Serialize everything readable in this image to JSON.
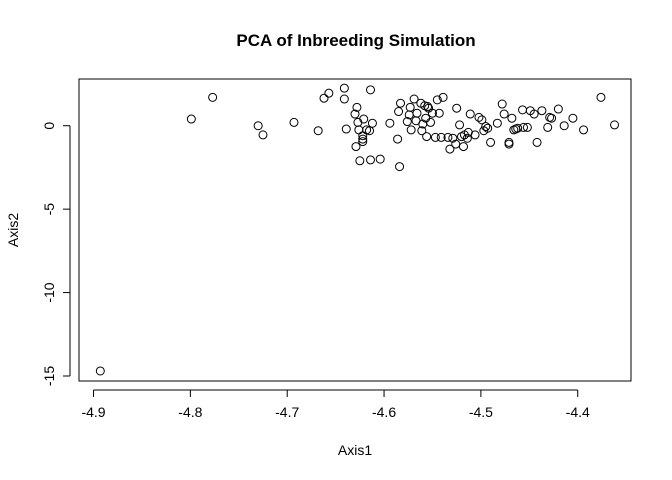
{
  "chart_data": {
    "type": "scatter",
    "title": "PCA of Inbreeding Simulation",
    "xlabel": "Axis1",
    "ylabel": "Axis2",
    "xlim": [
      -4.915,
      -4.345
    ],
    "ylim": [
      -15.3,
      2.8
    ],
    "x_ticks": [
      -4.9,
      -4.8,
      -4.7,
      -4.6,
      -4.5,
      -4.4
    ],
    "x_tick_labels": [
      "-4.9",
      "-4.8",
      "-4.7",
      "-4.6",
      "-4.5",
      "-4.4"
    ],
    "y_ticks": [
      0,
      -5,
      -10,
      -15
    ],
    "y_tick_labels": [
      "0",
      "-5",
      "-10",
      "-15"
    ],
    "grid": false,
    "legend": "none",
    "marker": "open-circle",
    "points": [
      {
        "x": -4.893,
        "y": -14.7
      },
      {
        "x": -4.799,
        "y": 0.4
      },
      {
        "x": -4.777,
        "y": 1.7
      },
      {
        "x": -4.73,
        "y": 0.0
      },
      {
        "x": -4.725,
        "y": -0.55
      },
      {
        "x": -4.693,
        "y": 0.2
      },
      {
        "x": -4.668,
        "y": -0.3
      },
      {
        "x": -4.662,
        "y": 1.65
      },
      {
        "x": -4.657,
        "y": 1.95
      },
      {
        "x": -4.641,
        "y": 2.25
      },
      {
        "x": -4.641,
        "y": 1.6
      },
      {
        "x": -4.639,
        "y": -0.2
      },
      {
        "x": -4.63,
        "y": 0.7
      },
      {
        "x": -4.629,
        "y": -1.25
      },
      {
        "x": -4.628,
        "y": 1.1
      },
      {
        "x": -4.627,
        "y": 0.2
      },
      {
        "x": -4.626,
        "y": -0.25
      },
      {
        "x": -4.625,
        "y": -2.1
      },
      {
        "x": -4.622,
        "y": -0.6
      },
      {
        "x": -4.622,
        "y": -0.8
      },
      {
        "x": -4.622,
        "y": -0.95
      },
      {
        "x": -4.621,
        "y": 0.4
      },
      {
        "x": -4.618,
        "y": -0.25
      },
      {
        "x": -4.615,
        "y": -0.3
      },
      {
        "x": -4.614,
        "y": -2.05
      },
      {
        "x": -4.614,
        "y": 2.15
      },
      {
        "x": -4.612,
        "y": 0.15
      },
      {
        "x": -4.604,
        "y": -2.0
      },
      {
        "x": -4.594,
        "y": 0.15
      },
      {
        "x": -4.586,
        "y": -0.8
      },
      {
        "x": -4.585,
        "y": 0.85
      },
      {
        "x": -4.584,
        "y": -2.45
      },
      {
        "x": -4.583,
        "y": 1.35
      },
      {
        "x": -4.576,
        "y": 0.25
      },
      {
        "x": -4.574,
        "y": 0.65
      },
      {
        "x": -4.573,
        "y": 1.1
      },
      {
        "x": -4.572,
        "y": -0.25
      },
      {
        "x": -4.569,
        "y": 1.6
      },
      {
        "x": -4.567,
        "y": 0.3
      },
      {
        "x": -4.566,
        "y": 0.75
      },
      {
        "x": -4.562,
        "y": 1.35
      },
      {
        "x": -4.561,
        "y": -0.3
      },
      {
        "x": -4.56,
        "y": 0.1
      },
      {
        "x": -4.558,
        "y": 1.2
      },
      {
        "x": -4.557,
        "y": 0.45
      },
      {
        "x": -4.556,
        "y": -0.65
      },
      {
        "x": -4.555,
        "y": 1.15
      },
      {
        "x": -4.554,
        "y": 1.05
      },
      {
        "x": -4.552,
        "y": 0.2
      },
      {
        "x": -4.55,
        "y": 0.75
      },
      {
        "x": -4.547,
        "y": -0.7
      },
      {
        "x": -4.545,
        "y": 1.55
      },
      {
        "x": -4.543,
        "y": 0.75
      },
      {
        "x": -4.541,
        "y": -0.7
      },
      {
        "x": -4.539,
        "y": 1.7
      },
      {
        "x": -4.534,
        "y": -0.7
      },
      {
        "x": -4.532,
        "y": -1.4
      },
      {
        "x": -4.529,
        "y": -0.75
      },
      {
        "x": -4.526,
        "y": -1.1
      },
      {
        "x": -4.525,
        "y": 1.05
      },
      {
        "x": -4.522,
        "y": 0.05
      },
      {
        "x": -4.52,
        "y": -0.65
      },
      {
        "x": -4.518,
        "y": -1.25
      },
      {
        "x": -4.517,
        "y": -0.55
      },
      {
        "x": -4.514,
        "y": -0.75
      },
      {
        "x": -4.513,
        "y": -0.4
      },
      {
        "x": -4.511,
        "y": 0.7
      },
      {
        "x": -4.506,
        "y": -0.55
      },
      {
        "x": -4.502,
        "y": 0.5
      },
      {
        "x": -4.499,
        "y": 0.35
      },
      {
        "x": -4.497,
        "y": -0.3
      },
      {
        "x": -4.495,
        "y": -0.05
      },
      {
        "x": -4.493,
        "y": -0.15
      },
      {
        "x": -4.49,
        "y": -1.0
      },
      {
        "x": -4.483,
        "y": 0.15
      },
      {
        "x": -4.478,
        "y": 1.3
      },
      {
        "x": -4.476,
        "y": 0.7
      },
      {
        "x": -4.471,
        "y": -1.0
      },
      {
        "x": -4.471,
        "y": -1.1
      },
      {
        "x": -4.468,
        "y": 0.45
      },
      {
        "x": -4.466,
        "y": -0.25
      },
      {
        "x": -4.464,
        "y": -0.2
      },
      {
        "x": -4.462,
        "y": -0.15
      },
      {
        "x": -4.457,
        "y": 0.95
      },
      {
        "x": -4.456,
        "y": -0.1
      },
      {
        "x": -4.452,
        "y": -0.1
      },
      {
        "x": -4.449,
        "y": 0.9
      },
      {
        "x": -4.445,
        "y": 0.7
      },
      {
        "x": -4.442,
        "y": -1.0
      },
      {
        "x": -4.437,
        "y": 0.9
      },
      {
        "x": -4.431,
        "y": -0.1
      },
      {
        "x": -4.429,
        "y": 0.5
      },
      {
        "x": -4.427,
        "y": 0.45
      },
      {
        "x": -4.42,
        "y": 1.0
      },
      {
        "x": -4.414,
        "y": 0.0
      },
      {
        "x": -4.405,
        "y": 0.45
      },
      {
        "x": -4.394,
        "y": -0.25
      },
      {
        "x": -4.376,
        "y": 1.7
      },
      {
        "x": -4.362,
        "y": 0.05
      }
    ]
  }
}
